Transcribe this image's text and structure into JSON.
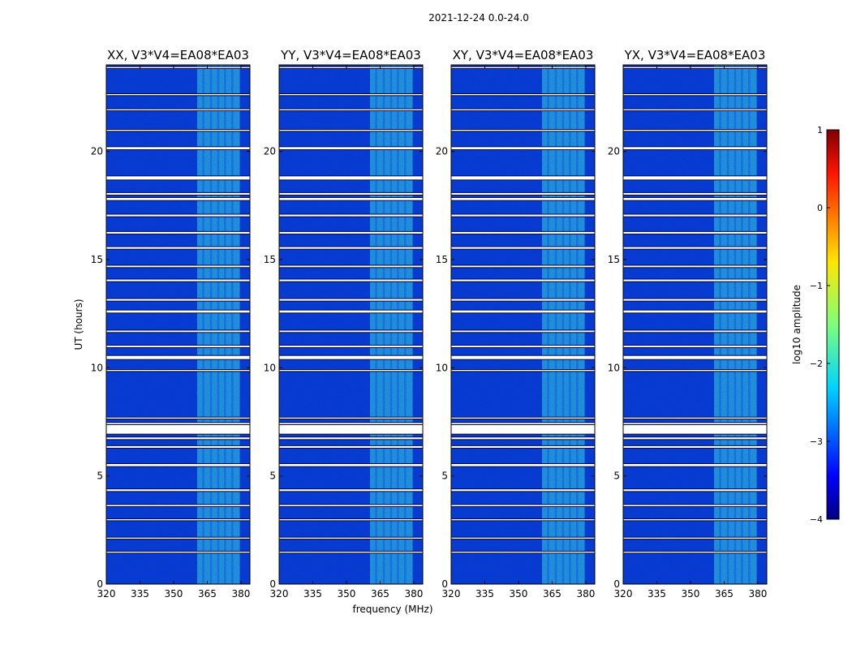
{
  "chart_data": {
    "type": "heatmap",
    "suptitle": "2021-12-24 0.0-24.0",
    "xlabel": "frequency (MHz)",
    "ylabel": "UT (hours)",
    "xlim": [
      320,
      384
    ],
    "ylim": [
      0,
      24
    ],
    "xticks": [
      320,
      335,
      350,
      365,
      380
    ],
    "yticks": [
      0,
      5,
      10,
      15,
      20
    ],
    "panels": [
      {
        "title": "XX, V3*V4=EA08*EA03",
        "polarization": "XX"
      },
      {
        "title": "YY, V3*V4=EA08*EA03",
        "polarization": "YY"
      },
      {
        "title": "XY, V3*V4=EA08*EA03",
        "polarization": "XY"
      },
      {
        "title": "YX, V3*V4=EA08*EA03",
        "polarization": "YX"
      }
    ],
    "bright_band_mhz": [
      360.5,
      379.5
    ],
    "bright_band_log10_amplitude": -1.7,
    "background_log10_amplitude": -3.2,
    "flagged_gaps_hours": [
      [
        23.85,
        23.9
      ],
      [
        22.6,
        22.65
      ],
      [
        21.9,
        21.95
      ],
      [
        20.95,
        21.0
      ],
      [
        20.1,
        20.2
      ],
      [
        18.7,
        18.85
      ],
      [
        18.0,
        18.08
      ],
      [
        17.75,
        17.85
      ],
      [
        17.0,
        17.08
      ],
      [
        16.2,
        16.28
      ],
      [
        15.5,
        15.58
      ],
      [
        14.65,
        14.72
      ],
      [
        14.0,
        14.08
      ],
      [
        13.1,
        13.18
      ],
      [
        12.55,
        12.65
      ],
      [
        11.65,
        11.72
      ],
      [
        10.95,
        11.02
      ],
      [
        10.4,
        10.55
      ],
      [
        9.85,
        9.9
      ],
      [
        7.65,
        7.7
      ],
      [
        7.35,
        7.45
      ],
      [
        6.95,
        7.35
      ],
      [
        6.7,
        6.78
      ],
      [
        6.3,
        6.38
      ],
      [
        5.45,
        5.55
      ],
      [
        4.3,
        4.38
      ],
      [
        3.6,
        3.66
      ],
      [
        2.95,
        3.0
      ],
      [
        2.1,
        2.15
      ],
      [
        1.45,
        1.5
      ]
    ],
    "colorbar": {
      "label": "log10 amplitude",
      "ticks": [
        1,
        0,
        -1,
        -2,
        -3,
        -4
      ],
      "tick_labels": [
        "1",
        "0",
        "−1",
        "−2",
        "−3",
        "−4"
      ],
      "range": [
        -4,
        1
      ],
      "colormap": "jet"
    }
  },
  "colors": {
    "background": "#0a2fd8",
    "band": "#38c8e8",
    "gap": "#ffffff"
  }
}
